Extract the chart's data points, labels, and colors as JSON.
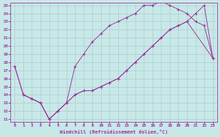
{
  "bg_color": "#c8e8e8",
  "grid_color": "#aacccc",
  "line_color": "#993399",
  "xlim": [
    0,
    23
  ],
  "ylim": [
    11,
    25
  ],
  "xticks": [
    0,
    1,
    2,
    3,
    4,
    5,
    6,
    7,
    8,
    9,
    10,
    11,
    12,
    13,
    14,
    15,
    16,
    17,
    18,
    19,
    20,
    21,
    22,
    23
  ],
  "yticks": [
    11,
    12,
    13,
    14,
    15,
    16,
    17,
    18,
    19,
    20,
    21,
    22,
    23,
    24,
    25
  ],
  "xlabel": "Windchill (Refroidissement éolien,°C)",
  "line_upper_x": [
    0,
    1,
    2,
    3,
    4,
    5,
    6,
    7,
    8,
    9,
    10,
    11,
    12,
    13,
    14,
    15,
    16,
    17,
    18,
    19,
    20,
    21,
    22,
    23
  ],
  "line_upper_y": [
    17.5,
    14.0,
    13.5,
    13.0,
    11.0,
    12.0,
    13.0,
    17.5,
    19.0,
    20.5,
    21.5,
    22.5,
    23.0,
    23.5,
    24.0,
    25.0,
    25.0,
    25.5,
    25.0,
    24.5,
    24.0,
    23.0,
    22.5,
    18.5
  ],
  "line_lower_x": [
    0,
    1,
    2,
    3,
    4,
    5,
    6,
    7,
    8,
    9,
    10,
    11,
    12,
    13,
    14,
    15,
    16,
    17,
    18,
    19,
    20,
    21,
    22,
    23
  ],
  "line_lower_y": [
    17.5,
    14.0,
    13.5,
    13.0,
    11.0,
    12.0,
    13.0,
    14.0,
    14.5,
    14.5,
    15.0,
    15.5,
    16.0,
    17.0,
    18.0,
    19.0,
    20.0,
    21.0,
    22.0,
    22.5,
    23.0,
    24.0,
    25.0,
    18.5
  ],
  "line_mid_x": [
    1,
    2,
    3,
    4,
    5,
    6,
    7,
    8,
    9,
    10,
    11,
    12,
    13,
    14,
    15,
    16,
    17,
    18,
    19,
    20,
    23
  ],
  "line_mid_y": [
    14.0,
    13.5,
    13.0,
    11.0,
    12.0,
    13.0,
    14.0,
    14.5,
    14.5,
    15.0,
    15.5,
    16.0,
    17.0,
    18.0,
    19.0,
    20.0,
    21.0,
    22.0,
    22.5,
    23.0,
    18.5
  ]
}
